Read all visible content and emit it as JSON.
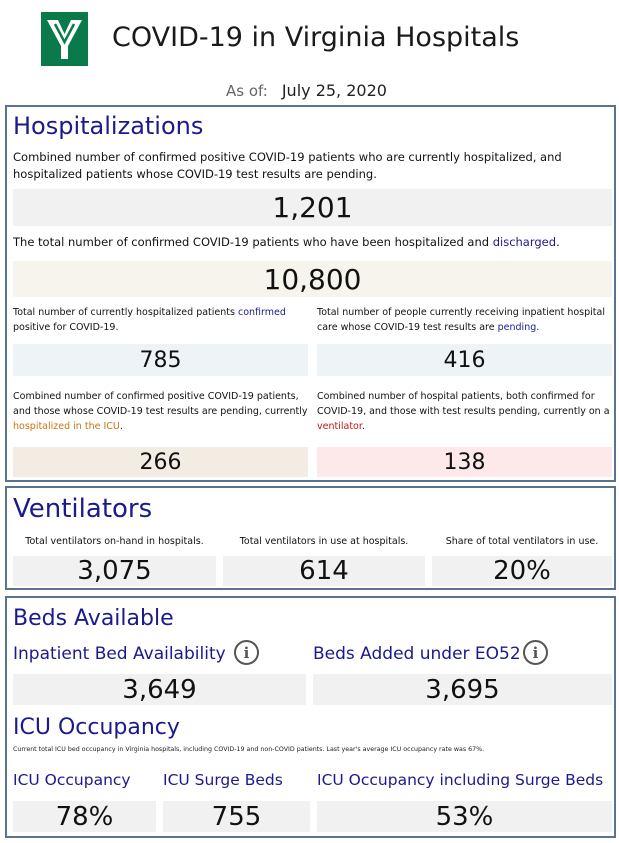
{
  "header": {
    "title": "COVID-19 in Virginia Hospitals",
    "as_of_label": "As of:",
    "as_of_date": "July 25, 2020"
  },
  "hospitalizations": {
    "title": "Hospitalizations",
    "total_desc": [
      "Combined",
      " number of ",
      "confirmed",
      " positive COVID-19 patients who are currently hospitalized, and hospitalized patients whose COVID-19 test results are ",
      "pending",
      "."
    ],
    "total_value": "1,201",
    "discharged_desc": [
      "The total number of confirmed COVID-19 patients who have been hospitalized and ",
      "discharged",
      "."
    ],
    "discharged_value": "10,800",
    "confirmed_desc": [
      "Total number of currently hospitalized patients ",
      "confirmed",
      " positive for COVID-19."
    ],
    "confirmed_value": "785",
    "pending_desc": [
      "Total number of people currently receiving inpatient hospital care whose COVID-19 test results are ",
      "pending",
      "."
    ],
    "pending_value": "416",
    "icu_desc": [
      "Combined number of confirmed positive COVID-19 patients, and those whose COVID-19 test results are pending, currently ",
      "hospitalized in the ICU",
      "."
    ],
    "icu_value": "266",
    "vent_desc": [
      "Combined number of hospital patients, both confirmed for COVID-19, and those with test results pending, currently on a ",
      "ventilator",
      "."
    ],
    "vent_value": "138"
  },
  "ventilators": {
    "title": "Ventilators",
    "on_hand_label": "Total ventilators on-hand in hospitals.",
    "on_hand_value": "3,075",
    "in_use_label": "Total ventilators in use at hospitals.",
    "in_use_value": "614",
    "share_label": "Share of total ventilators in use.",
    "share_value": "20%"
  },
  "beds": {
    "title": "Beds Available",
    "inpatient_label": "Inpatient Bed Availability",
    "inpatient_value": "3,649",
    "eo52_label": "Beds Added under EO52",
    "eo52_value": "3,695",
    "info_glyph": "i",
    "icu_title": "ICU Occupancy",
    "icu_desc": "Current total ICU bed occupancy in Virginia hospitals, including COVID-19 and non-COVID patients. Last year's average ICU occupancy rate was 67%.",
    "icu_occ_label": "ICU Occupancy",
    "icu_occ_value": "78%",
    "surge_label": "ICU Surge Beds",
    "surge_value": "755",
    "occ_surge_label": "ICU Occupancy including Surge Beds",
    "occ_surge_value": "53%"
  },
  "colors": {
    "accent_blue": "#1a1a8c",
    "frame": "#5a7390",
    "logo_green": "#0b7a4b",
    "icu_orange": "#c8760c",
    "ventilator_red": "#c21818"
  },
  "icons": {
    "logo": "vhha-logo-icon",
    "info": "info-icon"
  }
}
